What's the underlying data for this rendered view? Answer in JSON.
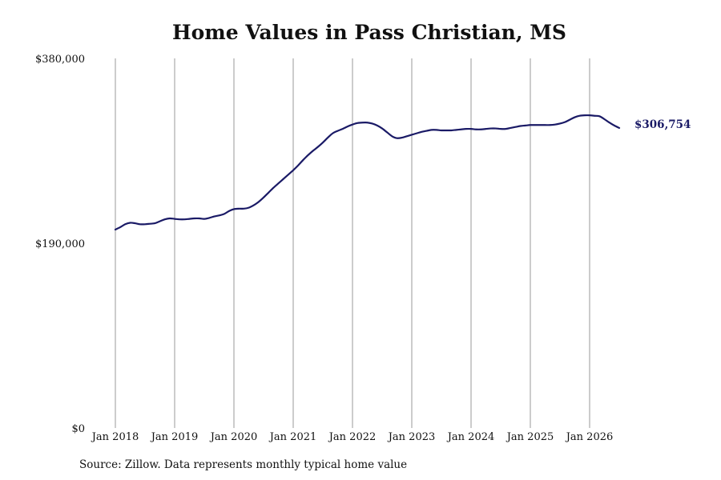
{
  "chart_data": {
    "type": "line",
    "title": "Home Values in Pass Christian, MS",
    "source": "Source: Zillow. Data represents monthly typical home value",
    "ylim": [
      0,
      380000
    ],
    "yticks": [
      {
        "value": 0,
        "label": "$0"
      },
      {
        "value": 190000,
        "label": "$190,000"
      },
      {
        "value": 380000,
        "label": "$380,000"
      }
    ],
    "xticks": [
      {
        "date": "2018-01",
        "label": "Jan 2018"
      },
      {
        "date": "2019-01",
        "label": "Jan 2019"
      },
      {
        "date": "2020-01",
        "label": "Jan 2020"
      },
      {
        "date": "2021-01",
        "label": "Jan 2021"
      },
      {
        "date": "2022-01",
        "label": "Jan 2022"
      },
      {
        "date": "2023-01",
        "label": "Jan 2023"
      },
      {
        "date": "2024-01",
        "label": "Jan 2024"
      },
      {
        "date": "2025-01",
        "label": "Jan 2025"
      },
      {
        "date": "2026-01",
        "label": "Jan 2026"
      }
    ],
    "grid": {
      "vertical": true,
      "horizontal": false
    },
    "line_color": "#1a1a66",
    "grid_color": "#999999",
    "end_label": "$306,754",
    "series": [
      {
        "x": [
          "2018-01",
          "2018-02",
          "2018-03",
          "2018-04",
          "2018-05",
          "2018-06",
          "2018-07",
          "2018-08",
          "2018-09",
          "2018-10",
          "2018-11",
          "2018-12",
          "2019-01",
          "2019-02",
          "2019-03",
          "2019-04",
          "2019-05",
          "2019-06",
          "2019-07",
          "2019-08",
          "2019-09",
          "2019-10",
          "2019-11",
          "2019-12",
          "2020-01",
          "2020-02",
          "2020-03",
          "2020-04",
          "2020-05",
          "2020-06",
          "2020-07",
          "2020-08",
          "2020-09",
          "2020-10",
          "2020-11",
          "2020-12",
          "2021-01",
          "2021-02",
          "2021-03",
          "2021-04",
          "2021-05",
          "2021-06",
          "2021-07",
          "2021-08",
          "2021-09",
          "2021-10",
          "2021-11",
          "2021-12",
          "2022-01",
          "2022-02",
          "2022-03",
          "2022-04",
          "2022-05",
          "2022-06",
          "2022-07",
          "2022-08",
          "2022-09",
          "2022-10",
          "2022-11",
          "2022-12",
          "2023-01",
          "2023-02",
          "2023-03",
          "2023-04",
          "2023-05",
          "2023-06",
          "2023-07",
          "2023-08",
          "2023-09",
          "2023-10",
          "2023-11",
          "2023-12",
          "2024-01",
          "2024-02",
          "2024-03",
          "2024-04",
          "2024-05",
          "2024-06",
          "2024-07",
          "2024-08",
          "2024-09",
          "2024-10",
          "2024-11",
          "2024-12",
          "2025-01",
          "2025-02",
          "2025-03",
          "2025-04",
          "2025-05",
          "2025-06",
          "2025-07",
          "2025-08",
          "2025-09",
          "2025-10",
          "2025-11",
          "2025-12",
          "2026-01",
          "2026-02",
          "2026-03",
          "2026-04",
          "2026-05",
          "2026-06",
          "2026-07"
        ],
        "y": [
          204000,
          206500,
          209500,
          211000,
          210500,
          209500,
          209500,
          210000,
          210500,
          212500,
          214500,
          215500,
          215000,
          214500,
          214500,
          215000,
          215500,
          215500,
          215000,
          216000,
          217500,
          218500,
          220000,
          223000,
          225000,
          225500,
          225500,
          226500,
          229000,
          232500,
          237000,
          242000,
          247000,
          251500,
          256000,
          260500,
          265000,
          270000,
          275500,
          280500,
          285000,
          289000,
          293500,
          298500,
          303000,
          305500,
          307500,
          310000,
          312000,
          313500,
          314000,
          314000,
          313000,
          311000,
          308000,
          304000,
          300000,
          298000,
          298500,
          300000,
          301500,
          303000,
          304500,
          305500,
          306500,
          306500,
          306000,
          306000,
          306000,
          306500,
          307000,
          307500,
          307500,
          307000,
          307000,
          307500,
          308000,
          308000,
          307500,
          307500,
          308500,
          309500,
          310500,
          311000,
          311500,
          311500,
          311500,
          311500,
          311500,
          312000,
          313000,
          314500,
          317000,
          319500,
          321000,
          321500,
          321500,
          321000,
          320500,
          317500,
          314000,
          311000,
          308500
        ]
      }
    ]
  }
}
